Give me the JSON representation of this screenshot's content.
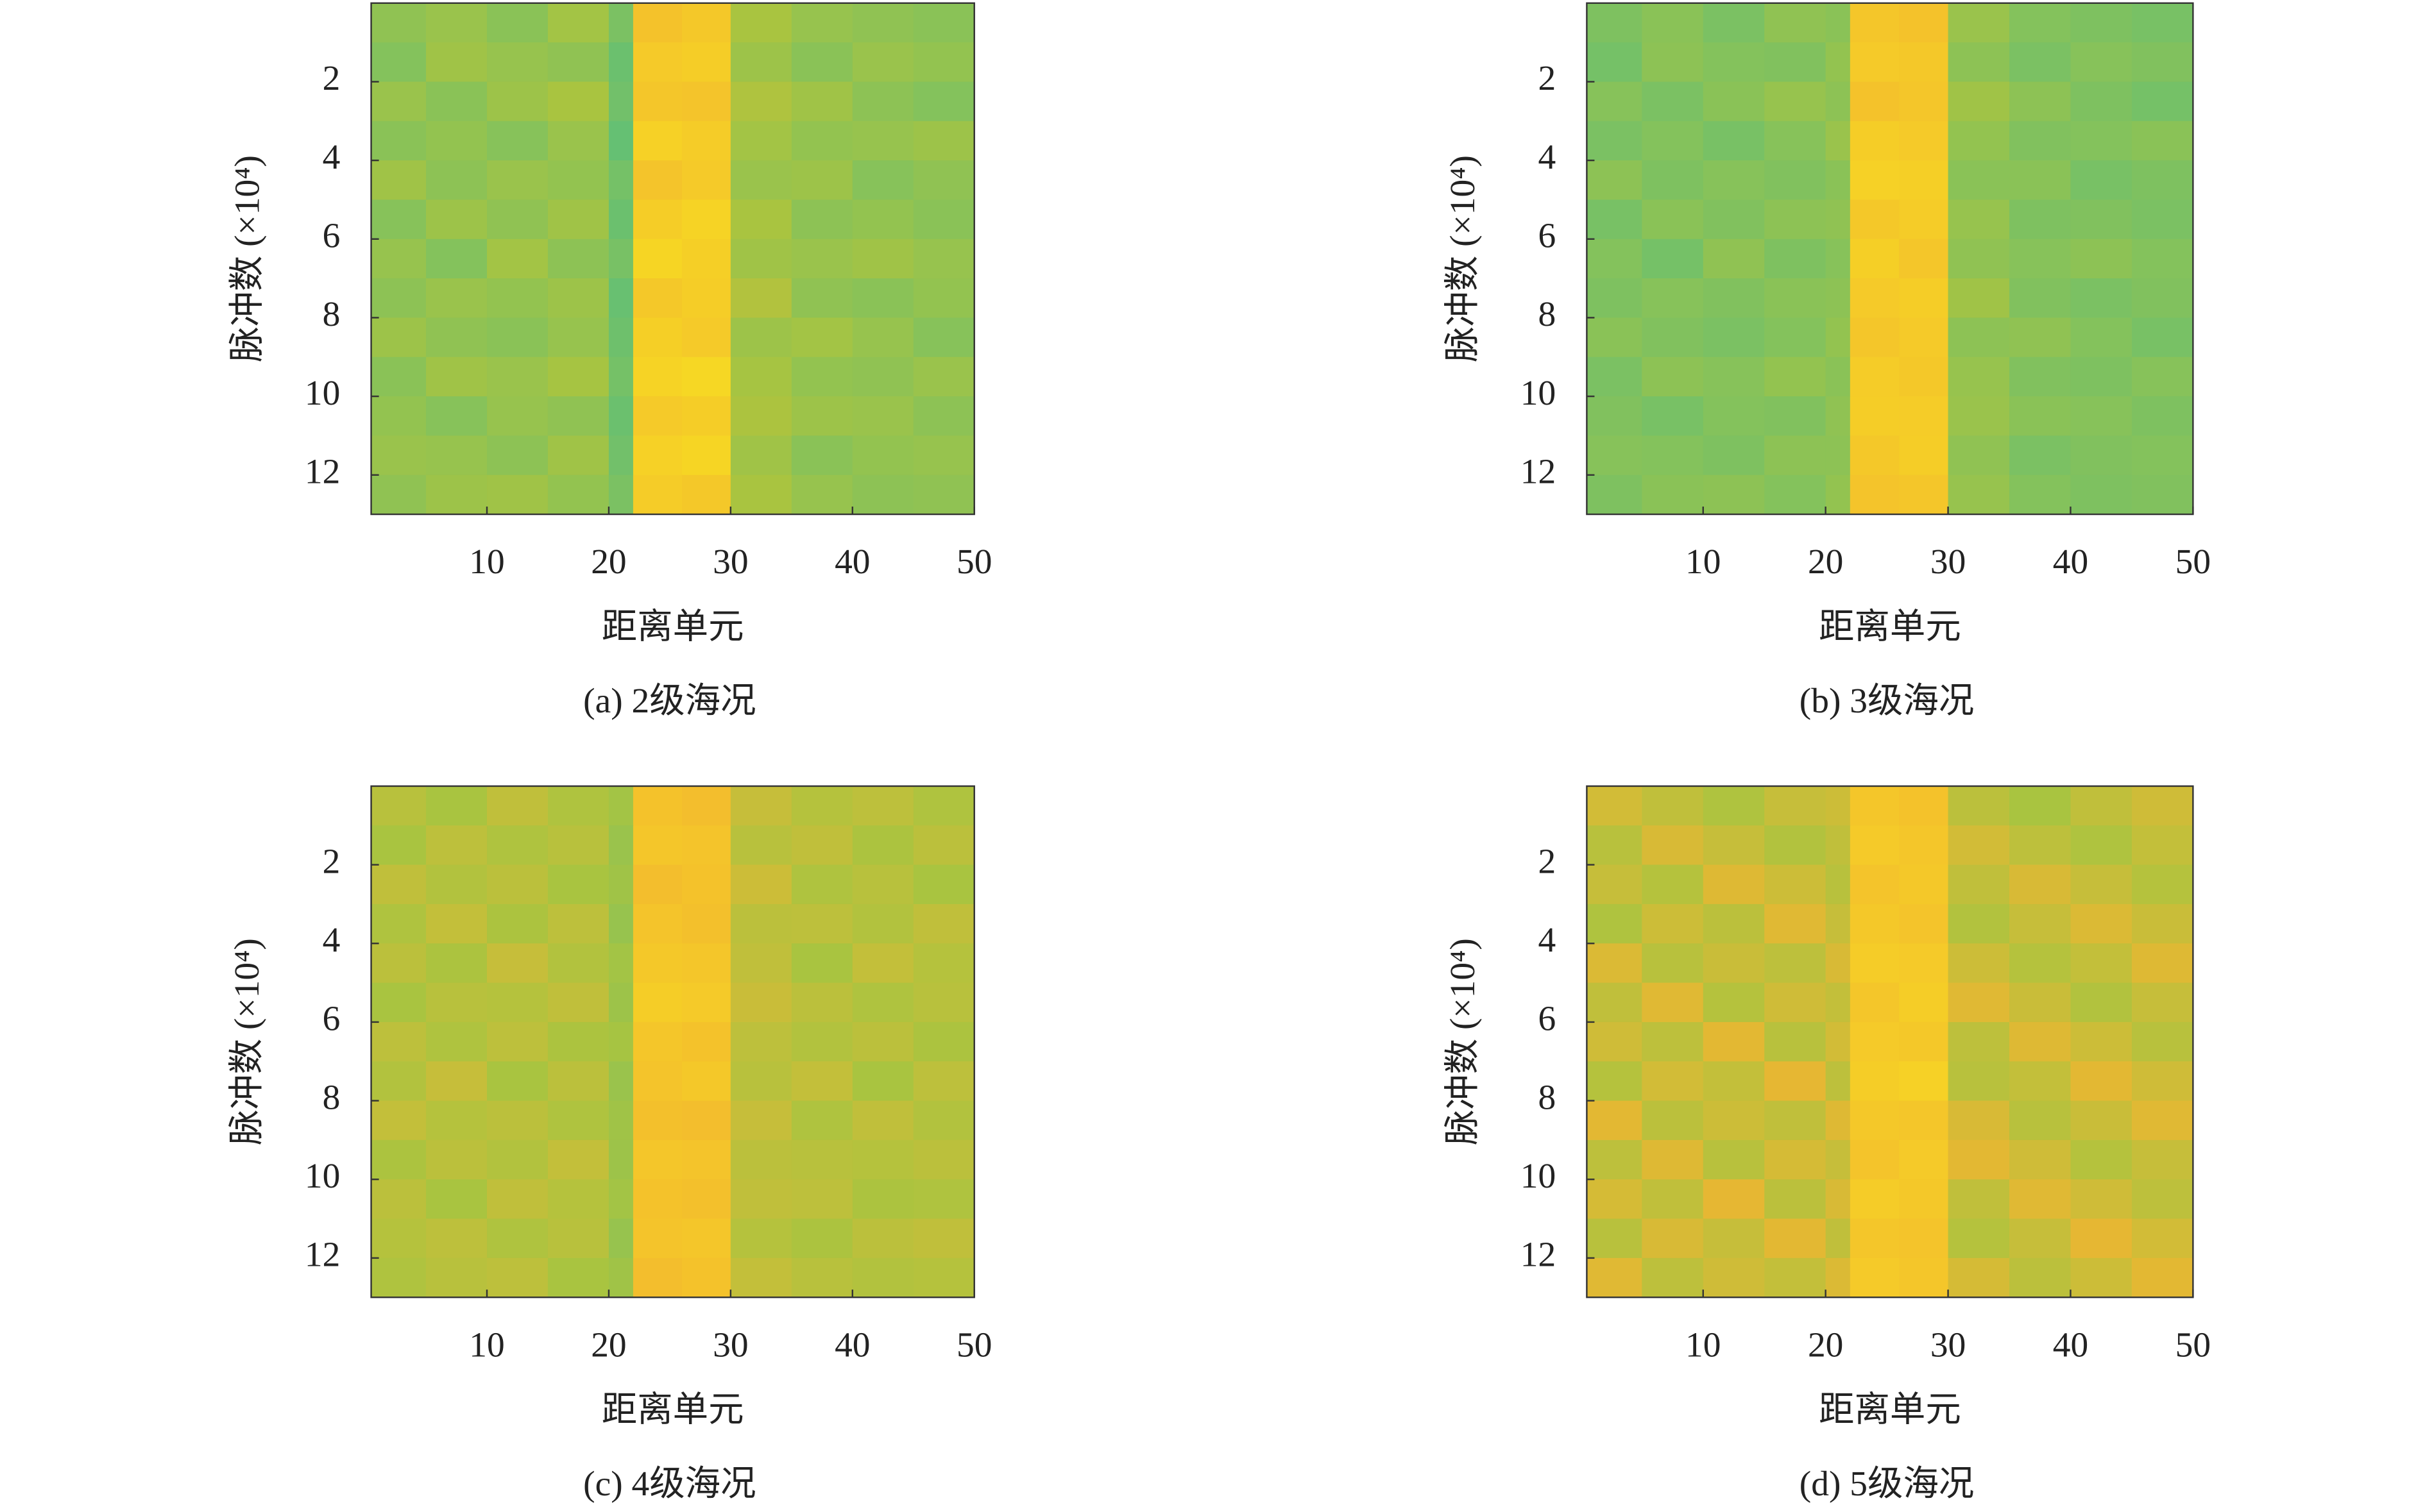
{
  "chart_data": [
    {
      "type": "heatmap",
      "caption": "(a) 2级海况",
      "xlabel": "距离单元",
      "ylabel": "脉冲数 (×10⁴)",
      "xlim": [
        0.5,
        50
      ],
      "ylim": [
        0,
        13
      ],
      "y_reversed": true,
      "xticks": [
        10,
        20,
        30,
        40,
        50
      ],
      "yticks": [
        2,
        4,
        6,
        8,
        10,
        12
      ],
      "x_bins": [
        0.5,
        5,
        10,
        15,
        20,
        22,
        26,
        30,
        35,
        40,
        45,
        50
      ],
      "y_bins": [
        0,
        1,
        2,
        3,
        4,
        5,
        6,
        7,
        8,
        9,
        10,
        11,
        12,
        13
      ],
      "colormap": [
        "#1fa39b",
        "#5cbf7a",
        "#a9c440",
        "#f2b530",
        "#f8e41f"
      ],
      "zlim": [
        0,
        1
      ],
      "z": [
        [
          0.42,
          0.45,
          0.4,
          0.48,
          0.35,
          0.82,
          0.85,
          0.5,
          0.44,
          0.42,
          0.4
        ],
        [
          0.38,
          0.47,
          0.44,
          0.42,
          0.3,
          0.86,
          0.88,
          0.46,
          0.4,
          0.45,
          0.43
        ],
        [
          0.45,
          0.4,
          0.46,
          0.5,
          0.32,
          0.84,
          0.83,
          0.52,
          0.47,
          0.41,
          0.38
        ],
        [
          0.4,
          0.43,
          0.39,
          0.45,
          0.28,
          0.9,
          0.87,
          0.48,
          0.43,
          0.44,
          0.46
        ],
        [
          0.47,
          0.41,
          0.45,
          0.43,
          0.33,
          0.83,
          0.86,
          0.45,
          0.46,
          0.39,
          0.42
        ],
        [
          0.39,
          0.46,
          0.42,
          0.47,
          0.3,
          0.88,
          0.91,
          0.5,
          0.41,
          0.43,
          0.4
        ],
        [
          0.44,
          0.38,
          0.48,
          0.41,
          0.34,
          0.92,
          0.89,
          0.47,
          0.45,
          0.47,
          0.44
        ],
        [
          0.41,
          0.45,
          0.43,
          0.46,
          0.29,
          0.85,
          0.88,
          0.53,
          0.42,
          0.4,
          0.43
        ],
        [
          0.46,
          0.42,
          0.4,
          0.44,
          0.31,
          0.89,
          0.86,
          0.46,
          0.48,
          0.44,
          0.39
        ],
        [
          0.4,
          0.47,
          0.45,
          0.49,
          0.33,
          0.91,
          0.93,
          0.49,
          0.43,
          0.42,
          0.45
        ],
        [
          0.43,
          0.39,
          0.44,
          0.42,
          0.3,
          0.86,
          0.88,
          0.51,
          0.46,
          0.45,
          0.41
        ],
        [
          0.45,
          0.44,
          0.41,
          0.47,
          0.32,
          0.9,
          0.92,
          0.47,
          0.4,
          0.43,
          0.44
        ],
        [
          0.42,
          0.46,
          0.47,
          0.43,
          0.35,
          0.87,
          0.85,
          0.5,
          0.44,
          0.41,
          0.42
        ]
      ]
    },
    {
      "type": "heatmap",
      "caption": "(b) 3级海况",
      "xlabel": "距离单元",
      "ylabel": "脉冲数 (×10⁴)",
      "xlim": [
        0.5,
        50
      ],
      "ylim": [
        0,
        13
      ],
      "y_reversed": true,
      "xticks": [
        10,
        20,
        30,
        40,
        50
      ],
      "yticks": [
        2,
        4,
        6,
        8,
        10,
        12
      ],
      "x_bins": [
        0.5,
        5,
        10,
        15,
        20,
        22,
        26,
        30,
        35,
        40,
        45,
        50
      ],
      "y_bins": [
        0,
        1,
        2,
        3,
        4,
        5,
        6,
        7,
        8,
        9,
        10,
        11,
        12,
        13
      ],
      "colormap": [
        "#1fa39b",
        "#5cbf7a",
        "#a9c440",
        "#f2b530",
        "#f8e41f"
      ],
      "zlim": [
        0,
        1
      ],
      "z": [
        [
          0.36,
          0.4,
          0.35,
          0.42,
          0.4,
          0.84,
          0.82,
          0.45,
          0.38,
          0.36,
          0.34
        ],
        [
          0.33,
          0.41,
          0.38,
          0.37,
          0.43,
          0.86,
          0.85,
          0.41,
          0.35,
          0.39,
          0.37
        ],
        [
          0.39,
          0.35,
          0.4,
          0.44,
          0.41,
          0.82,
          0.84,
          0.47,
          0.41,
          0.36,
          0.33
        ],
        [
          0.35,
          0.38,
          0.34,
          0.39,
          0.45,
          0.88,
          0.86,
          0.43,
          0.37,
          0.38,
          0.4
        ],
        [
          0.41,
          0.36,
          0.39,
          0.37,
          0.4,
          0.9,
          0.89,
          0.4,
          0.4,
          0.34,
          0.36
        ],
        [
          0.34,
          0.4,
          0.37,
          0.41,
          0.42,
          0.85,
          0.87,
          0.44,
          0.36,
          0.37,
          0.35
        ],
        [
          0.38,
          0.33,
          0.42,
          0.36,
          0.39,
          0.89,
          0.84,
          0.42,
          0.39,
          0.41,
          0.38
        ],
        [
          0.36,
          0.39,
          0.37,
          0.4,
          0.41,
          0.86,
          0.88,
          0.47,
          0.37,
          0.35,
          0.37
        ],
        [
          0.4,
          0.37,
          0.35,
          0.38,
          0.43,
          0.84,
          0.86,
          0.41,
          0.42,
          0.38,
          0.34
        ],
        [
          0.35,
          0.41,
          0.39,
          0.43,
          0.4,
          0.87,
          0.85,
          0.44,
          0.37,
          0.36,
          0.39
        ],
        [
          0.37,
          0.34,
          0.38,
          0.37,
          0.42,
          0.88,
          0.87,
          0.45,
          0.4,
          0.39,
          0.36
        ],
        [
          0.39,
          0.38,
          0.36,
          0.41,
          0.41,
          0.85,
          0.88,
          0.42,
          0.35,
          0.37,
          0.38
        ],
        [
          0.36,
          0.4,
          0.41,
          0.38,
          0.43,
          0.83,
          0.84,
          0.44,
          0.38,
          0.36,
          0.37
        ]
      ]
    },
    {
      "type": "heatmap",
      "caption": "(c) 4级海况",
      "xlabel": "距离单元",
      "ylabel": "脉冲数 (×10⁴)",
      "xlim": [
        0.5,
        50
      ],
      "ylim": [
        0,
        13
      ],
      "y_reversed": true,
      "xticks": [
        10,
        20,
        30,
        40,
        50
      ],
      "yticks": [
        2,
        4,
        6,
        8,
        10,
        12
      ],
      "x_bins": [
        0.5,
        5,
        10,
        15,
        20,
        22,
        26,
        30,
        35,
        40,
        45,
        50
      ],
      "y_bins": [
        0,
        1,
        2,
        3,
        4,
        5,
        6,
        7,
        8,
        9,
        10,
        11,
        12,
        13
      ],
      "colormap": [
        "#1fa39b",
        "#5cbf7a",
        "#a9c440",
        "#f2b530",
        "#f8e41f"
      ],
      "zlim": [
        0,
        1
      ],
      "z": [
        [
          0.55,
          0.5,
          0.58,
          0.52,
          0.48,
          0.82,
          0.8,
          0.6,
          0.54,
          0.57,
          0.52
        ],
        [
          0.5,
          0.57,
          0.52,
          0.55,
          0.45,
          0.84,
          0.83,
          0.55,
          0.58,
          0.51,
          0.56
        ],
        [
          0.58,
          0.53,
          0.56,
          0.5,
          0.47,
          0.8,
          0.82,
          0.62,
          0.52,
          0.55,
          0.5
        ],
        [
          0.52,
          0.59,
          0.51,
          0.57,
          0.44,
          0.83,
          0.81,
          0.56,
          0.57,
          0.53,
          0.58
        ],
        [
          0.56,
          0.51,
          0.6,
          0.53,
          0.48,
          0.85,
          0.84,
          0.58,
          0.5,
          0.59,
          0.54
        ],
        [
          0.5,
          0.55,
          0.54,
          0.58,
          0.46,
          0.88,
          0.86,
          0.61,
          0.56,
          0.52,
          0.55
        ],
        [
          0.57,
          0.52,
          0.57,
          0.51,
          0.49,
          0.84,
          0.82,
          0.57,
          0.53,
          0.56,
          0.51
        ],
        [
          0.53,
          0.6,
          0.5,
          0.56,
          0.45,
          0.83,
          0.85,
          0.55,
          0.59,
          0.5,
          0.57
        ],
        [
          0.59,
          0.54,
          0.56,
          0.52,
          0.47,
          0.81,
          0.8,
          0.6,
          0.52,
          0.58,
          0.53
        ],
        [
          0.51,
          0.56,
          0.53,
          0.59,
          0.46,
          0.84,
          0.83,
          0.56,
          0.55,
          0.54,
          0.56
        ],
        [
          0.56,
          0.5,
          0.58,
          0.54,
          0.48,
          0.82,
          0.81,
          0.58,
          0.57,
          0.51,
          0.52
        ],
        [
          0.54,
          0.57,
          0.52,
          0.55,
          0.44,
          0.83,
          0.84,
          0.54,
          0.51,
          0.56,
          0.58
        ],
        [
          0.52,
          0.55,
          0.57,
          0.5,
          0.47,
          0.8,
          0.82,
          0.59,
          0.55,
          0.53,
          0.54
        ]
      ]
    },
    {
      "type": "heatmap",
      "caption": "(d) 5级海况",
      "xlabel": "距离单元",
      "ylabel": "脉冲数 (×10⁴)",
      "xlim": [
        0.5,
        50
      ],
      "ylim": [
        0,
        13
      ],
      "y_reversed": true,
      "xticks": [
        10,
        20,
        30,
        40,
        50
      ],
      "yticks": [
        2,
        4,
        6,
        8,
        10,
        12
      ],
      "x_bins": [
        0.5,
        5,
        10,
        15,
        20,
        22,
        26,
        30,
        35,
        40,
        45,
        50
      ],
      "y_bins": [
        0,
        1,
        2,
        3,
        4,
        5,
        6,
        7,
        8,
        9,
        10,
        11,
        12,
        13
      ],
      "colormap": [
        "#1fa39b",
        "#5cbf7a",
        "#a9c440",
        "#f2b530",
        "#f8e41f"
      ],
      "zlim": [
        0,
        1
      ],
      "z": [
        [
          0.64,
          0.58,
          0.52,
          0.6,
          0.62,
          0.84,
          0.82,
          0.56,
          0.5,
          0.58,
          0.63
        ],
        [
          0.55,
          0.66,
          0.6,
          0.53,
          0.58,
          0.86,
          0.84,
          0.64,
          0.57,
          0.52,
          0.59
        ],
        [
          0.6,
          0.54,
          0.68,
          0.62,
          0.55,
          0.83,
          0.85,
          0.58,
          0.66,
          0.6,
          0.54
        ],
        [
          0.52,
          0.62,
          0.56,
          0.69,
          0.6,
          0.85,
          0.83,
          0.53,
          0.6,
          0.67,
          0.61
        ],
        [
          0.67,
          0.55,
          0.61,
          0.57,
          0.66,
          0.87,
          0.86,
          0.62,
          0.54,
          0.59,
          0.68
        ],
        [
          0.58,
          0.69,
          0.54,
          0.63,
          0.59,
          0.84,
          0.88,
          0.69,
          0.61,
          0.53,
          0.6
        ],
        [
          0.63,
          0.57,
          0.7,
          0.55,
          0.64,
          0.86,
          0.85,
          0.57,
          0.68,
          0.62,
          0.55
        ],
        [
          0.54,
          0.64,
          0.59,
          0.71,
          0.57,
          0.88,
          0.9,
          0.55,
          0.59,
          0.7,
          0.63
        ],
        [
          0.7,
          0.56,
          0.62,
          0.58,
          0.68,
          0.85,
          0.84,
          0.66,
          0.55,
          0.61,
          0.69
        ],
        [
          0.57,
          0.68,
          0.55,
          0.65,
          0.6,
          0.83,
          0.86,
          0.7,
          0.63,
          0.54,
          0.6
        ],
        [
          0.65,
          0.58,
          0.71,
          0.56,
          0.66,
          0.87,
          0.85,
          0.58,
          0.69,
          0.63,
          0.57
        ],
        [
          0.55,
          0.66,
          0.6,
          0.7,
          0.58,
          0.84,
          0.83,
          0.54,
          0.6,
          0.71,
          0.64
        ],
        [
          0.69,
          0.57,
          0.63,
          0.59,
          0.67,
          0.86,
          0.84,
          0.65,
          0.56,
          0.62,
          0.7
        ]
      ]
    }
  ]
}
